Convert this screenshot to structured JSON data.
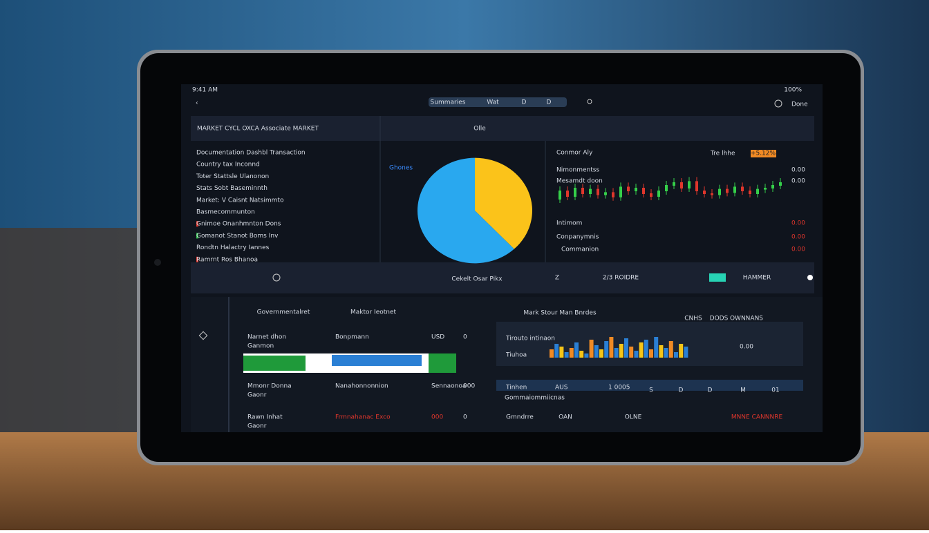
{
  "status": {
    "left": "9:41 AM",
    "right": "100%"
  },
  "tabs": [
    "Summaries",
    "Wat",
    "D",
    "D"
  ],
  "top_right": "Done",
  "header": {
    "title": "MARKET CYCL OXCA Associate MARKET",
    "center": "Olle"
  },
  "list": [
    "Documentation Dashbl Transaction",
    "Country tax Inconnd",
    "Toter Stattsle Ulanonon",
    "Stats Sobt Baseminnth",
    "Market: V Caisnt Natsimmto",
    "Basmecommunton",
    "Gnimoe Onanhmnton Dons",
    "Gomanot Stanot Boms Inv",
    "Rondtn Halactry Iannes",
    "Ramrnt Ros Bhanoa"
  ],
  "pie": {
    "label": "Ghones",
    "values": [
      38,
      62
    ],
    "colors": [
      "#fbc31a",
      "#29a8ef"
    ],
    "caption": "Cekelt  Osar Pikx"
  },
  "candles": {
    "label": "Conmor Aly",
    "name": "Tre lhhe",
    "tag": "+5.12%",
    "rows": [
      "Nimonmentss",
      "Mesamdt doon",
      "Intimom",
      "Conpanymnis",
      "Commanion"
    ],
    "figures": [
      "0.00",
      "0.00",
      "0.00",
      "0.00",
      "0.00"
    ],
    "opens": [
      40,
      55,
      45,
      60,
      50,
      58,
      48,
      52,
      44,
      62,
      55,
      60,
      50,
      45,
      55,
      65,
      70,
      60,
      72,
      55,
      50,
      48,
      58,
      52,
      62,
      55,
      50,
      58,
      60,
      65
    ],
    "closes": [
      55,
      45,
      60,
      50,
      58,
      48,
      52,
      44,
      62,
      55,
      60,
      50,
      45,
      55,
      65,
      70,
      60,
      72,
      55,
      50,
      48,
      58,
      52,
      62,
      55,
      50,
      58,
      60,
      65,
      70
    ]
  },
  "toolbar": {
    "z": "Z",
    "code": "2/3 ROIDRE",
    "name": "HAMMER"
  },
  "section": {
    "left": "Governmentalret",
    "mid": "Maktor Ieotnet",
    "right": "Mark Stour Man Bnrdes",
    "links": [
      "CNHS",
      "DODS",
      "OWNNANS"
    ]
  },
  "left_rows": [
    [
      "Narnet dhon",
      "Ganmon",
      "Bonpmann",
      "USD",
      "0"
    ],
    [
      "Mmonr Donna",
      "Gaonr",
      "Nanahonnonnion",
      "Sennaonoa",
      "000"
    ],
    [
      "Rawn Inhat",
      "Gaonr",
      "Frmnahanac Exco",
      "000",
      "0"
    ]
  ],
  "right_rows": {
    "top": [
      "Tirouto intinaon",
      "Tiuhoa",
      "0.00"
    ],
    "mid": [
      "Tinhen",
      "AUS",
      "1 0005",
      "Gommaiommiicnas"
    ],
    "cols": [
      "S",
      "D",
      "D",
      "M",
      "01"
    ],
    "bottom": [
      "Gmndrre",
      "OAN",
      "OLNE",
      "MNNE CANNNRE"
    ]
  },
  "bars": {
    "values": [
      12,
      20,
      16,
      8,
      14,
      22,
      10,
      6,
      26,
      18,
      12,
      24,
      30,
      14,
      20,
      28,
      16,
      10,
      22,
      26,
      12,
      30,
      18,
      14,
      24,
      8,
      20,
      16
    ],
    "colors": [
      "#f08a24",
      "#2a7fd4",
      "#f5c518",
      "#2a7fd4"
    ]
  }
}
